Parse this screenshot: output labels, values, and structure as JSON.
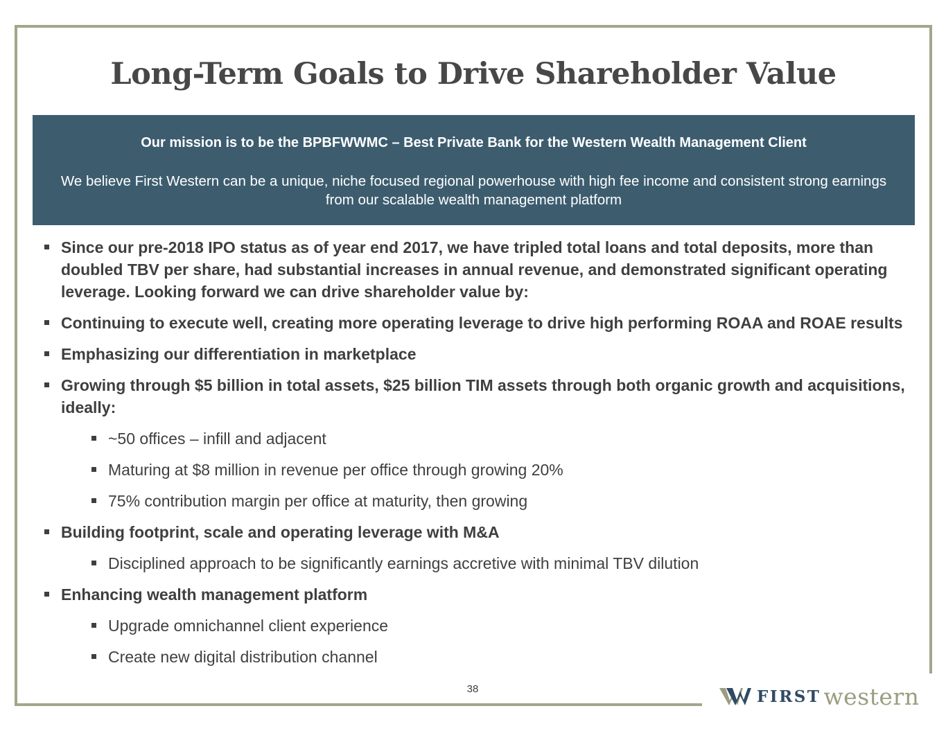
{
  "slide": {
    "title": "Long-Term Goals to Drive Shareholder Value",
    "page_number": "38"
  },
  "mission": {
    "heading": "Our mission is to be the BPBFWWMC – Best Private Bank for the Western Wealth Management Client",
    "body": "We believe First Western can be a unique, niche focused regional powerhouse with high fee income and consistent strong earnings from our scalable wealth management platform"
  },
  "bullets": [
    "Since our pre-2018 IPO status as of year end 2017, we have tripled total loans and total deposits, more than doubled TBV per share, had substantial increases in annual revenue, and demonstrated significant operating leverage. Looking forward we can drive shareholder value by:",
    "Continuing to execute well, creating more operating leverage to drive high performing ROAA and ROAE results",
    "Emphasizing our differentiation in marketplace",
    "Growing through $5 billion in total assets, $25 billion TIM assets through both organic growth and acquisitions, ideally:",
    "~50 offices – infill and adjacent",
    "Maturing at $8 million in revenue per office through growing 20%",
    "75% contribution margin per office at maturity, then growing",
    "Building footprint, scale and operating leverage with M&A",
    "Disciplined approach to be significantly earnings accretive with minimal TBV dilution",
    "Enhancing wealth management platform",
    "Upgrade omnichannel client experience",
    "Create new digital distribution channel"
  ],
  "logo": {
    "first": "FIRST",
    "western": "western"
  },
  "colors": {
    "mission_bg": "#3d5d6f",
    "frame": "#a3a68a",
    "logo_navy": "#2f4a64",
    "logo_olive": "#9a9d7f"
  }
}
